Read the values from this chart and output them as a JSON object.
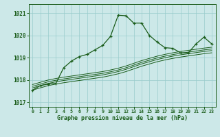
{
  "xlabel": "Graphe pression niveau de la mer (hPa)",
  "x_ticks": [
    0,
    1,
    2,
    3,
    4,
    5,
    6,
    7,
    8,
    9,
    10,
    11,
    12,
    13,
    14,
    15,
    16,
    17,
    18,
    19,
    20,
    21,
    22,
    23
  ],
  "ylim": [
    1016.8,
    1021.4
  ],
  "yticks": [
    1017,
    1018,
    1019,
    1020,
    1021
  ],
  "bg_color": "#cce8e8",
  "grid_color": "#99cccc",
  "line_color": "#1a5c1a",
  "band_lines": [
    [
      1017.55,
      1017.65,
      1017.75,
      1017.82,
      1017.88,
      1017.93,
      1017.98,
      1018.03,
      1018.08,
      1018.13,
      1018.2,
      1018.28,
      1018.38,
      1018.5,
      1018.62,
      1018.72,
      1018.82,
      1018.9,
      1018.97,
      1019.03,
      1019.08,
      1019.13,
      1019.18,
      1019.22
    ],
    [
      1017.65,
      1017.75,
      1017.85,
      1017.92,
      1017.98,
      1018.03,
      1018.08,
      1018.13,
      1018.18,
      1018.23,
      1018.3,
      1018.38,
      1018.48,
      1018.6,
      1018.72,
      1018.82,
      1018.92,
      1019.0,
      1019.07,
      1019.13,
      1019.18,
      1019.23,
      1019.28,
      1019.32
    ],
    [
      1017.72,
      1017.82,
      1017.92,
      1017.99,
      1018.05,
      1018.1,
      1018.15,
      1018.2,
      1018.25,
      1018.3,
      1018.37,
      1018.45,
      1018.55,
      1018.67,
      1018.79,
      1018.89,
      1018.99,
      1019.07,
      1019.14,
      1019.2,
      1019.25,
      1019.3,
      1019.35,
      1019.39
    ],
    [
      1017.8,
      1017.9,
      1018.0,
      1018.07,
      1018.13,
      1018.18,
      1018.23,
      1018.28,
      1018.33,
      1018.38,
      1018.45,
      1018.53,
      1018.63,
      1018.75,
      1018.87,
      1018.97,
      1019.07,
      1019.15,
      1019.22,
      1019.28,
      1019.33,
      1019.38,
      1019.43,
      1019.47
    ]
  ],
  "series_main": {
    "x": [
      0,
      1,
      2,
      3,
      4,
      5,
      6,
      7,
      8,
      9,
      10,
      11,
      12,
      13,
      14,
      15,
      16,
      17,
      18,
      19,
      20,
      21,
      22,
      23
    ],
    "y": [
      1017.55,
      1017.75,
      1017.82,
      1017.85,
      1018.55,
      1018.85,
      1019.05,
      1019.15,
      1019.35,
      1019.55,
      1019.95,
      1020.9,
      1020.88,
      1020.55,
      1020.55,
      1020.0,
      1019.7,
      1019.45,
      1019.42,
      1019.22,
      1019.22,
      1019.62,
      1019.92,
      1019.62
    ]
  }
}
